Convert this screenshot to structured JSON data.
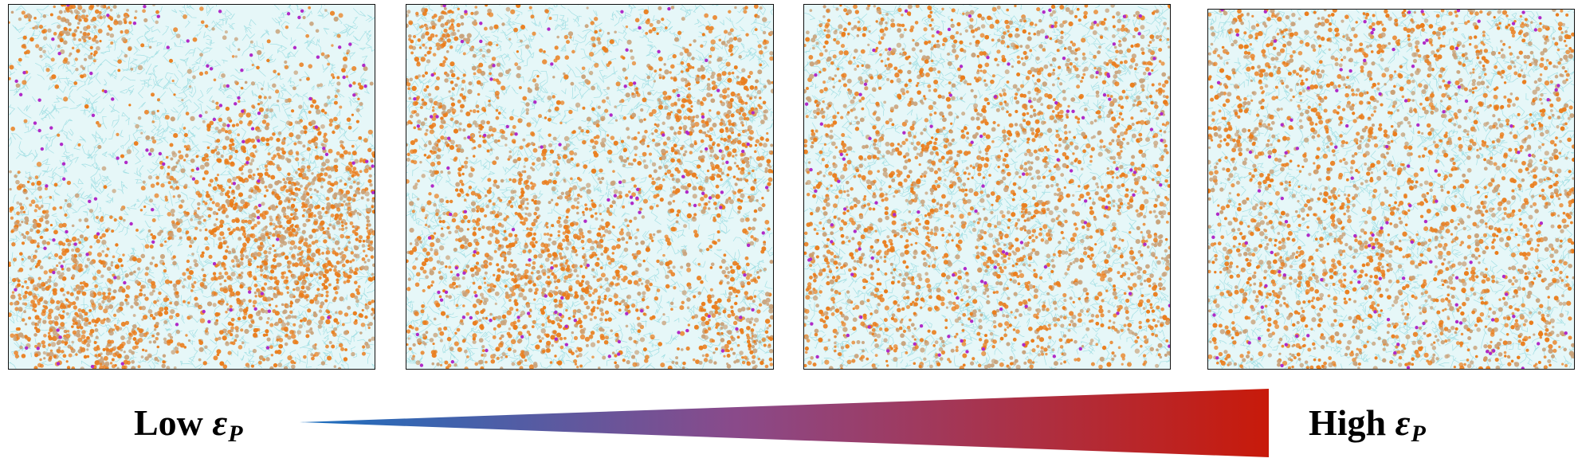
{
  "labels": {
    "low_prefix": "Low",
    "high_prefix": "High",
    "epsilon": "ε",
    "subscript": "P"
  },
  "colors": {
    "background": "#e6f7f8",
    "solvent_mesh": "#88d6dc",
    "polymer_orange": "#ea7d1c",
    "polymer_tan": "#c9a27a",
    "ion_magenta": "#b02ac8",
    "gradient_start": "#1a6fbf",
    "gradient_mid": "#8a4a8a",
    "gradient_end": "#c81a0a"
  },
  "panels": [
    {
      "id": "panel-1",
      "phase_separation": 0.95
    },
    {
      "id": "panel-2",
      "phase_separation": 0.65
    },
    {
      "id": "panel-3",
      "phase_separation": 0.25
    },
    {
      "id": "panel-4",
      "phase_separation": 0.05
    }
  ]
}
